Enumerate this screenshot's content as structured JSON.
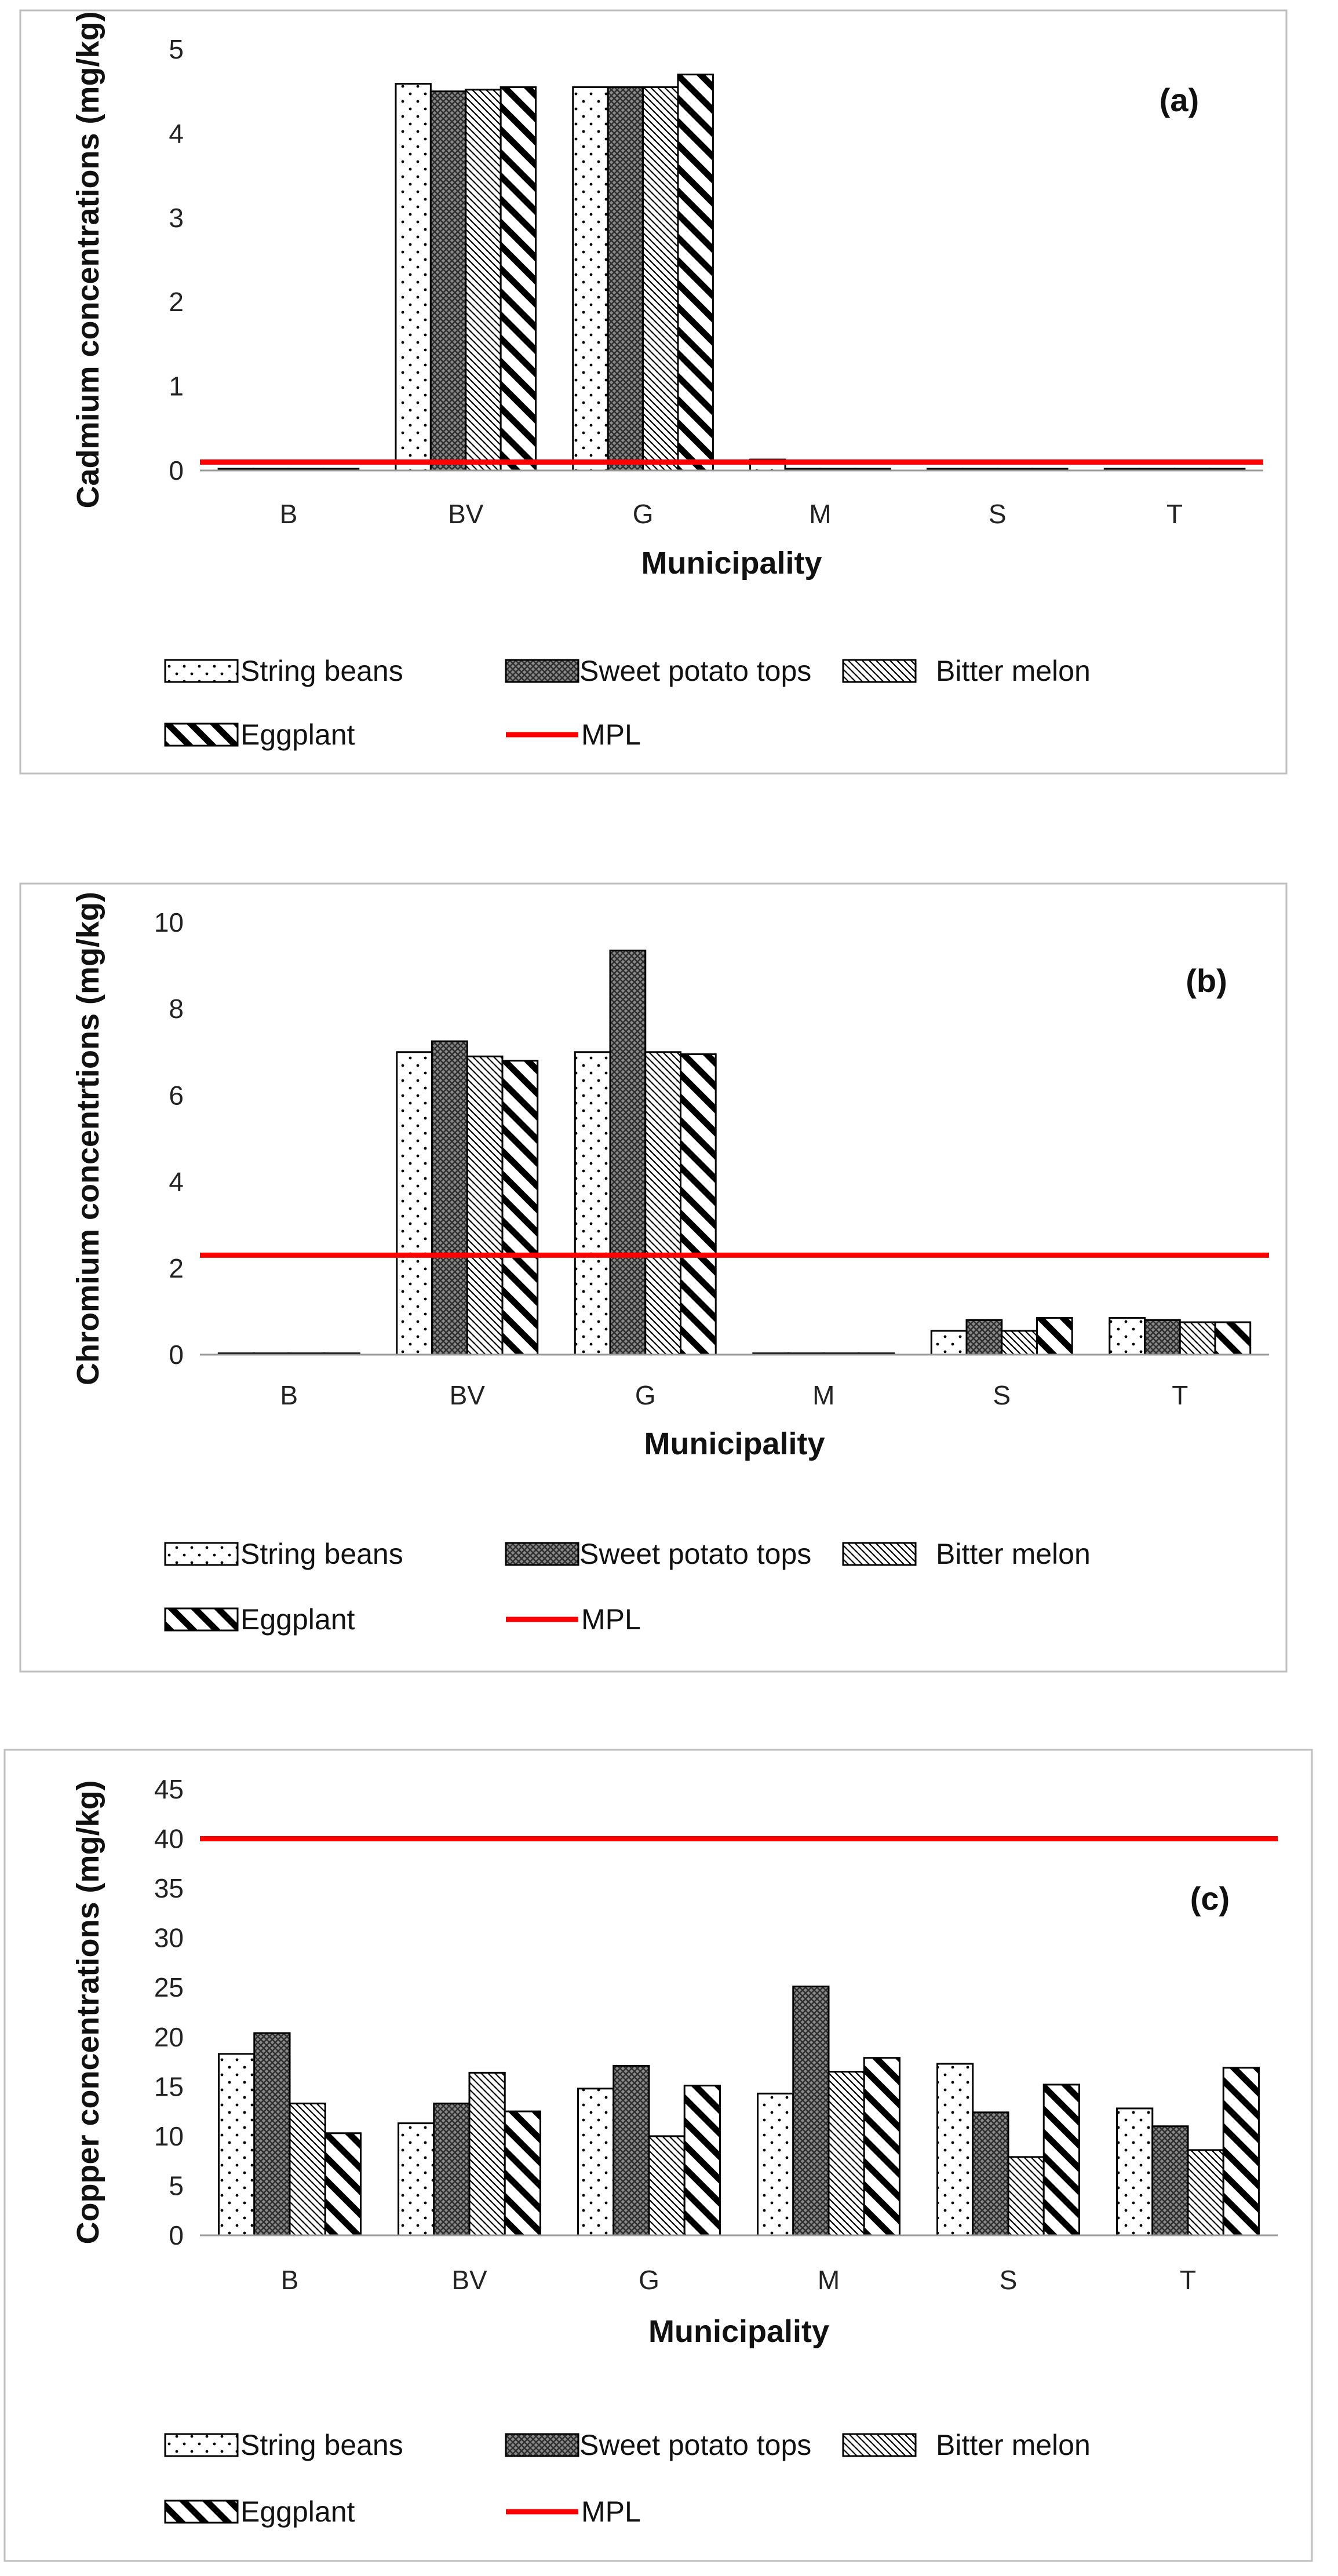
{
  "styles": {
    "mpl_color": "#ff0000",
    "bar_stroke": "#000000",
    "frame_color": "#bfbfbf"
  },
  "series_names": [
    "String beans",
    "Sweet potato tops",
    "Bitter melon",
    "Eggplant"
  ],
  "mpl_label": "MPL",
  "chart_data": [
    {
      "type": "bar",
      "panel_label": "(a)",
      "ylabel": "Cadmium concentrations (mg/kg)",
      "xlabel": "Municipality",
      "categories": [
        "B",
        "BV",
        "G",
        "M",
        "S",
        "T"
      ],
      "ylim": [
        0,
        5
      ],
      "yticks": [
        0,
        1,
        2,
        3,
        4,
        5
      ],
      "mpl": 0.1,
      "series": [
        {
          "name": "String beans",
          "pattern": "dots",
          "values": [
            0.02,
            4.59,
            4.55,
            0.13,
            0.02,
            0.02
          ]
        },
        {
          "name": "Sweet potato tops",
          "pattern": "cross",
          "values": [
            0.02,
            4.5,
            4.55,
            0.02,
            0.02,
            0.02
          ]
        },
        {
          "name": "Bitter melon",
          "pattern": "diag-thin",
          "values": [
            0.02,
            4.52,
            4.55,
            0.02,
            0.02,
            0.02
          ]
        },
        {
          "name": "Eggplant",
          "pattern": "diag-thick",
          "values": [
            0.02,
            4.55,
            4.7,
            0.02,
            0.02,
            0.02
          ]
        }
      ]
    },
    {
      "type": "bar",
      "panel_label": "(b)",
      "ylabel": "Chromium concentrtions (mg/kg)",
      "xlabel": "Municipality",
      "categories": [
        "B",
        "BV",
        "G",
        "M",
        "S",
        "T"
      ],
      "ylim": [
        0,
        10
      ],
      "yticks": [
        0,
        2,
        4,
        6,
        8,
        10
      ],
      "mpl": 2.3,
      "series": [
        {
          "name": "String beans",
          "pattern": "dots",
          "values": [
            0.03,
            7.0,
            7.0,
            0.03,
            0.55,
            0.85
          ]
        },
        {
          "name": "Sweet potato tops",
          "pattern": "cross",
          "values": [
            0.03,
            7.25,
            9.35,
            0.03,
            0.8,
            0.8
          ]
        },
        {
          "name": "Bitter melon",
          "pattern": "diag-thin",
          "values": [
            0.03,
            6.9,
            7.0,
            0.03,
            0.55,
            0.75
          ]
        },
        {
          "name": "Eggplant",
          "pattern": "diag-thick",
          "values": [
            0.03,
            6.8,
            6.95,
            0.03,
            0.85,
            0.75
          ]
        }
      ]
    },
    {
      "type": "bar",
      "panel_label": "(c)",
      "ylabel": "Copper concentrations (mg/kg)",
      "xlabel": "Municipality",
      "categories": [
        "B",
        "BV",
        "G",
        "M",
        "S",
        "T"
      ],
      "ylim": [
        0,
        45
      ],
      "yticks": [
        0,
        5,
        10,
        15,
        20,
        25,
        30,
        35,
        40,
        45
      ],
      "mpl": 40,
      "series": [
        {
          "name": "String beans",
          "pattern": "dots",
          "values": [
            18.3,
            11.3,
            14.8,
            14.3,
            17.3,
            12.8
          ]
        },
        {
          "name": "Sweet potato tops",
          "pattern": "cross",
          "values": [
            20.4,
            13.3,
            17.1,
            25.1,
            12.4,
            11.0
          ]
        },
        {
          "name": "Bitter melon",
          "pattern": "diag-thin",
          "values": [
            13.3,
            16.4,
            10.0,
            16.5,
            7.9,
            8.6
          ]
        },
        {
          "name": "Eggplant",
          "pattern": "diag-thick",
          "values": [
            10.3,
            12.5,
            15.1,
            17.9,
            15.2,
            16.9
          ]
        }
      ]
    }
  ]
}
